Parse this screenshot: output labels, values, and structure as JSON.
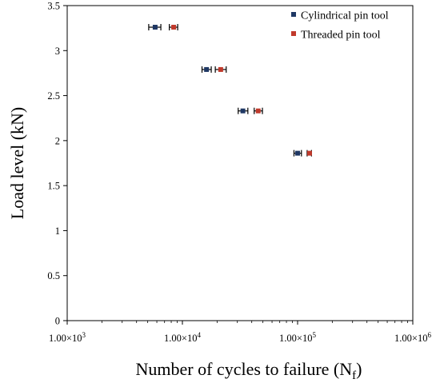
{
  "chart_data": {
    "type": "scatter",
    "title": "",
    "xlabel": "Number of cycles to failure (N",
    "xlabel_sub": "f",
    "xlabel_end": ")",
    "ylabel": "Load level (kN)",
    "x_scale": "log",
    "xlim": [
      1000,
      1000000
    ],
    "ylim": [
      0,
      3.5
    ],
    "x_ticks": [
      1000,
      10000,
      100000,
      1000000
    ],
    "x_tick_mantissa": "1.00×10",
    "x_tick_exponents": [
      "3",
      "4",
      "5",
      "6"
    ],
    "y_ticks": [
      0,
      0.5,
      1,
      1.5,
      2,
      2.5,
      3,
      3.5
    ],
    "y_tick_labels": [
      "0",
      "0.5",
      "1",
      "1.5",
      "2",
      "2.5",
      "3",
      "3.5"
    ],
    "grid": false,
    "legend_position": "top-right",
    "series": [
      {
        "name": "Cylindrical pin tool",
        "color": "#1f3864",
        "marker": "square",
        "points": [
          {
            "x": 5800,
            "y": 3.26,
            "x_err_low": 5100,
            "x_err_high": 6500
          },
          {
            "x": 16200,
            "y": 2.79,
            "x_err_low": 14800,
            "x_err_high": 17800
          },
          {
            "x": 33500,
            "y": 2.33,
            "x_err_low": 30500,
            "x_err_high": 37000
          },
          {
            "x": 100000,
            "y": 1.86,
            "x_err_low": 93000,
            "x_err_high": 108000
          }
        ]
      },
      {
        "name": "Threaded pin tool",
        "color": "#c0392b",
        "marker": "square",
        "points": [
          {
            "x": 8400,
            "y": 3.26,
            "x_err_low": 7700,
            "x_err_high": 9100
          },
          {
            "x": 21500,
            "y": 2.79,
            "x_err_low": 19300,
            "x_err_high": 24000
          },
          {
            "x": 45500,
            "y": 2.33,
            "x_err_low": 42000,
            "x_err_high": 49500
          },
          {
            "x": 127000,
            "y": 1.86,
            "x_err_low": 121000,
            "x_err_high": 132000
          }
        ]
      }
    ]
  }
}
